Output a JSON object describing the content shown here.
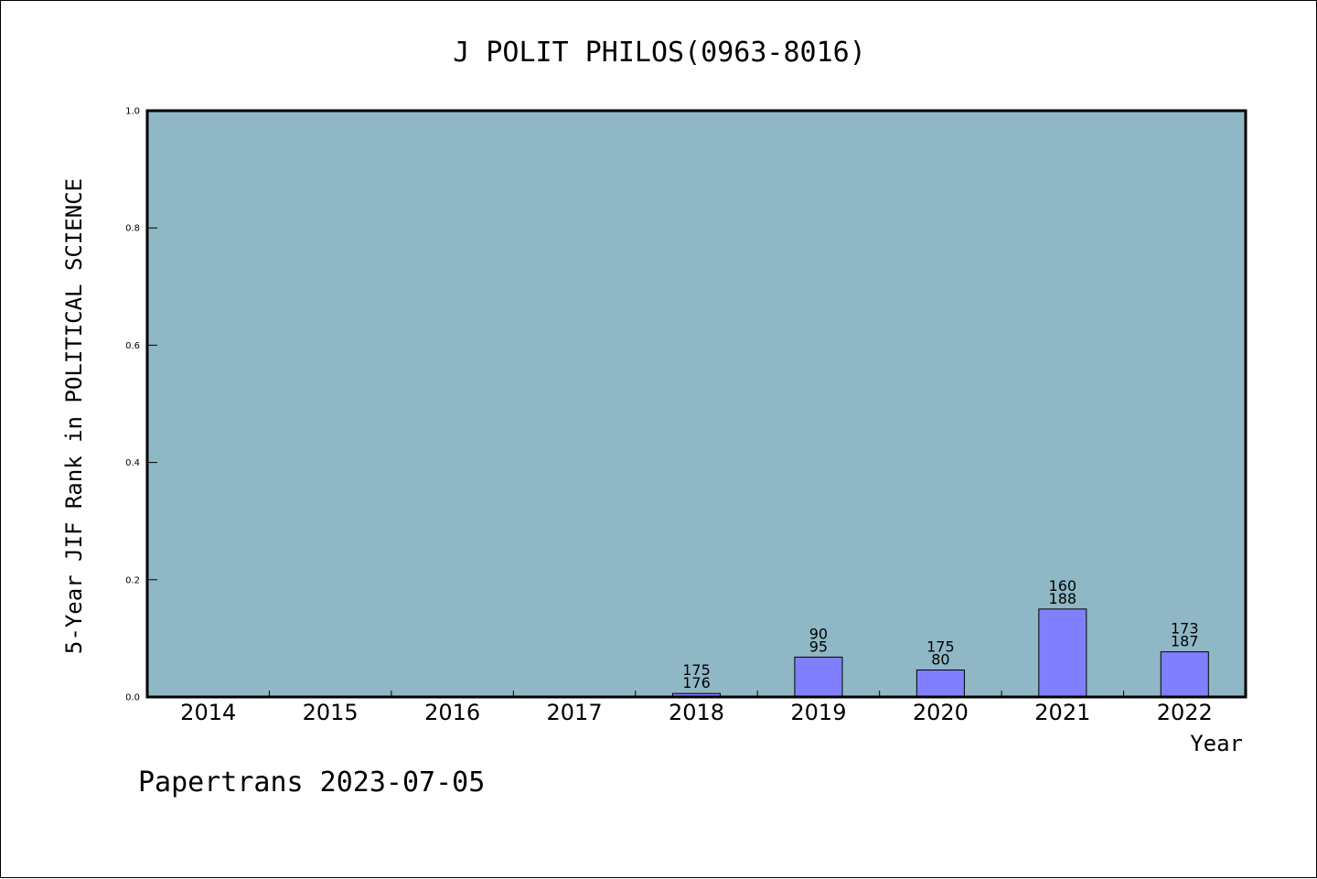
{
  "chart_data": {
    "type": "bar",
    "title": "J POLIT PHILOS(0963-8016)",
    "xlabel": "Year",
    "ylabel": "5-Year JIF Rank in POLITICAL SCIENCE",
    "categories": [
      "2014",
      "2015",
      "2016",
      "2017",
      "2018",
      "2019",
      "2020",
      "2021",
      "2022"
    ],
    "values": [
      null,
      null,
      null,
      null,
      0.006,
      0.068,
      0.046,
      0.15,
      0.077
    ],
    "rank_labels": [
      null,
      null,
      null,
      null,
      [
        "175",
        "176"
      ],
      [
        "90",
        "95"
      ],
      [
        "175",
        "80"
      ],
      [
        "160",
        "188"
      ],
      [
        "173",
        "187"
      ]
    ],
    "ylim": [
      0,
      1.0
    ],
    "yticks": [
      "0.0",
      "0.2",
      "0.4",
      "0.6",
      "0.8",
      "1.0"
    ],
    "ytick_values": [
      0,
      0.2,
      0.4,
      0.6,
      0.8,
      1.0
    ],
    "grid": false,
    "colors": {
      "plot_background": "#8fb7c5",
      "bar_fill": "#8080ff",
      "bar_stroke": "#000000"
    }
  },
  "footer": "Papertrans 2023-07-05"
}
